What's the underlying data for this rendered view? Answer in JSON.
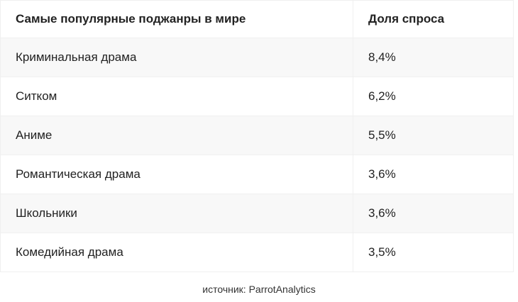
{
  "table": {
    "header": [
      "Самые популярные поджанры в мире",
      "Доля спроса"
    ],
    "rows": [
      [
        "Криминальная драма",
        "8,4%"
      ],
      [
        "Ситком",
        "6,2%"
      ],
      [
        "Аниме",
        "5,5%"
      ],
      [
        "Романтическая драма",
        "3,6%"
      ],
      [
        "Школьники",
        "3,6%"
      ],
      [
        "Комедийная драма",
        "3,5%"
      ]
    ]
  },
  "source": "источник: ParrotAnalytics"
}
